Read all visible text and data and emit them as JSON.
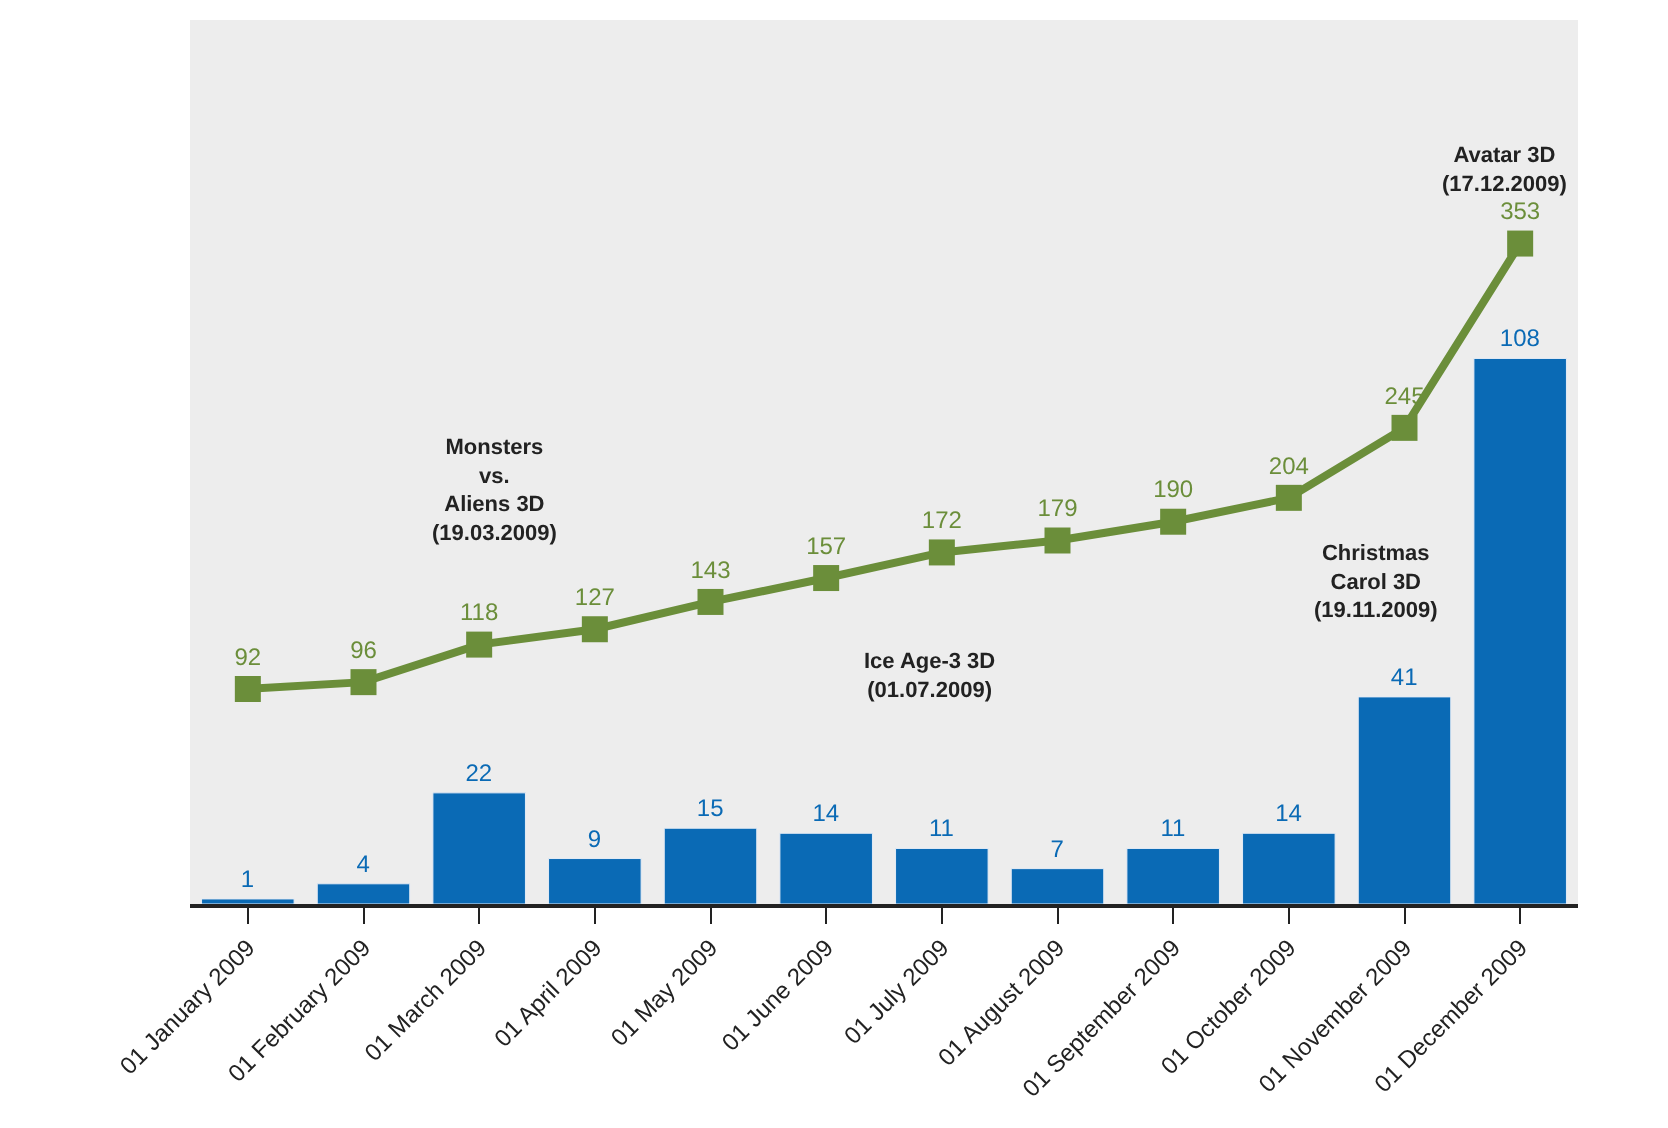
{
  "chart_data": {
    "type": "bar",
    "categories": [
      "01 January 2009",
      "01 February 2009",
      "01 March 2009",
      "01 April 2009",
      "01 May 2009",
      "01 June 2009",
      "01 July 2009",
      "01 August 2009",
      "01 September 2009",
      "01 October 2009",
      "01 November 2009",
      "01 December 2009"
    ],
    "series": [
      {
        "color": "#0a6ab5",
        "values": [
          1,
          4,
          22,
          9,
          15,
          14,
          11,
          7,
          11,
          14,
          41,
          108
        ]
      },
      {
        "type": "line",
        "axis": "y2",
        "color": "#6b8e3a",
        "marker": "square",
        "values": [
          92,
          96,
          118,
          127,
          143,
          157,
          172,
          179,
          190,
          204,
          245,
          353
        ]
      }
    ],
    "ylim": [
      0,
      175
    ],
    "y2lim": [
      -34,
      484
    ],
    "tick_labels": "x",
    "data_labels": true,
    "grid": false,
    "annotations": [
      "Monsters\nvs.\nAliens 3D\n(19.03.2009)",
      "Ice Age-3 3D\n(01.07.2009)",
      "Christmas\nCarol 3D\n(19.11.2009)",
      "Avatar 3D\n(17.12.2009)"
    ]
  }
}
